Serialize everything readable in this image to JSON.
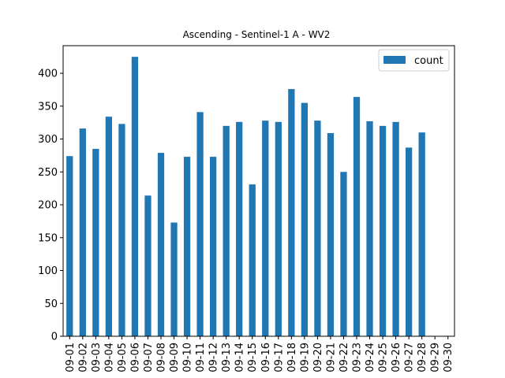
{
  "chart_data": {
    "type": "bar",
    "title": "Ascending - Sentinel-1 A - WV2",
    "xlabel": "",
    "ylabel": "",
    "categories": [
      "09-01",
      "09-02",
      "09-03",
      "09-04",
      "09-05",
      "09-06",
      "09-07",
      "09-08",
      "09-09",
      "09-10",
      "09-11",
      "09-12",
      "09-13",
      "09-14",
      "09-15",
      "09-16",
      "09-17",
      "09-18",
      "09-19",
      "09-20",
      "09-21",
      "09-22",
      "09-23",
      "09-24",
      "09-25",
      "09-26",
      "09-27",
      "09-28",
      "09-29",
      "09-30"
    ],
    "series": [
      {
        "name": "count",
        "values": [
          274,
          316,
          285,
          334,
          323,
          425,
          214,
          279,
          173,
          273,
          341,
          273,
          320,
          326,
          231,
          328,
          326,
          376,
          355,
          328,
          309,
          250,
          364,
          327,
          320,
          326,
          287,
          310,
          0,
          0
        ]
      }
    ],
    "ylim": [
      0,
      442
    ],
    "yticks": [
      0,
      50,
      100,
      150,
      200,
      250,
      300,
      350,
      400
    ],
    "legend_position": "top-right",
    "grid": false,
    "colors": {
      "bar": "#1f77b4",
      "axis": "#000000",
      "legend_border": "#cccccc"
    }
  }
}
